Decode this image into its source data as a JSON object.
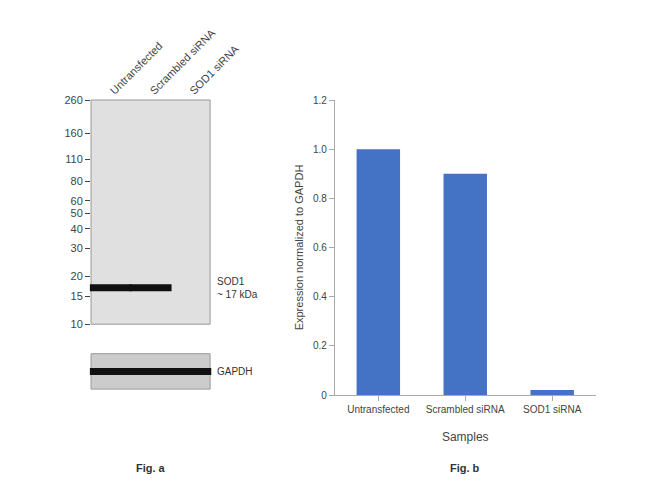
{
  "chart_data": [
    {
      "type": "blot",
      "categories": [
        "Untransfected",
        "Scrambled siRNA",
        "SOD1 siRNA"
      ],
      "log": "y",
      "ylim": [
        10,
        260
      ],
      "yticks": [
        260,
        160,
        110,
        80,
        60,
        50,
        40,
        30,
        20,
        15,
        10
      ],
      "grid": false,
      "color": "#e0e0e0",
      "series": [
        {
          "name": "SOD1\n~ 17 kDa",
          "values": [
            17,
            17,
            null
          ]
        }
      ],
      "annotations": [
        "Fig. a"
      ]
    },
    {
      "type": "blot",
      "categories": [
        null,
        null,
        null
      ],
      "tick_labels": false,
      "color": "#cccccc",
      "series": [
        {
          "name": "GAPDH",
          "values": [
            true,
            true,
            true
          ]
        }
      ]
    },
    {
      "type": "bar",
      "categories": [
        "Untransfected",
        "Scrambled siRNA",
        "SOD1 siRNA"
      ],
      "values": [
        1.0,
        0.9,
        0.02
      ],
      "color": "#4472c4",
      "xlabel": "Samples",
      "ylabel": "Expression normalized to GAPDH",
      "ylim": [
        0,
        1.2
      ],
      "yticks": [
        0,
        0.2,
        0.4,
        0.6,
        0.8,
        {
          "value": 1.0,
          "label": "1.0"
        },
        1.2
      ],
      "grid": false,
      "annotations": [
        "Fig. b"
      ]
    }
  ]
}
